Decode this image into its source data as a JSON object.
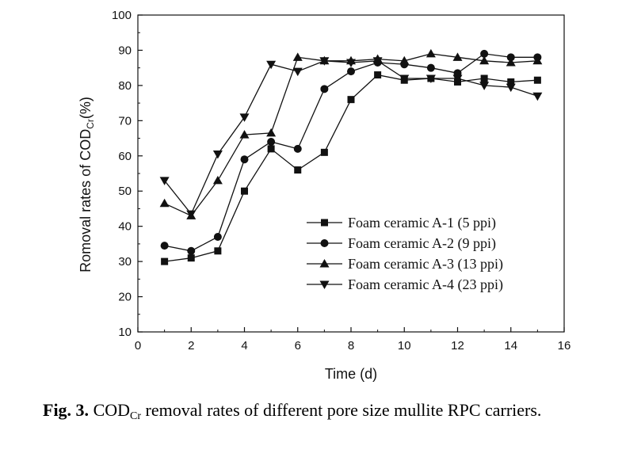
{
  "chart_data": {
    "type": "line",
    "xlabel": "Time (d)",
    "ylabel_main": "Romoval rates of COD",
    "ylabel_sub": "Cr",
    "ylabel_suffix": "(%)",
    "xlim": [
      0,
      16
    ],
    "ylim": [
      10,
      100
    ],
    "xticks": [
      "0",
      "2",
      "4",
      "6",
      "8",
      "10",
      "12",
      "14",
      "16"
    ],
    "yticks": [
      "10",
      "20",
      "30",
      "40",
      "50",
      "60",
      "70",
      "80",
      "90",
      "100"
    ],
    "grid": false,
    "legend_position": "bottom-right",
    "x": [
      1,
      2,
      3,
      4,
      5,
      6,
      7,
      8,
      9,
      10,
      11,
      12,
      13,
      14,
      15
    ],
    "series": [
      {
        "name": "Foam ceramic A-1 (5 ppi)",
        "marker": "square",
        "values": [
          30,
          31,
          33,
          50,
          62,
          56,
          61,
          76,
          83,
          81.5,
          82,
          81,
          82,
          81,
          81.5
        ]
      },
      {
        "name": "Foam ceramic A-2 (9 ppi)",
        "marker": "circle",
        "values": [
          34.5,
          33,
          37,
          59,
          64,
          62,
          79,
          84,
          86.5,
          86,
          85,
          83.5,
          89,
          88,
          88
        ]
      },
      {
        "name": "Foam ceramic A-3 (13 ppi)",
        "marker": "triangle-up",
        "values": [
          46.5,
          43,
          53,
          66,
          66.5,
          88,
          87,
          87,
          87.5,
          87,
          89,
          88,
          87,
          86.5,
          87
        ]
      },
      {
        "name": "Foam ceramic A-4 (23 ppi)",
        "marker": "triangle-down",
        "values": [
          53,
          43.5,
          60.5,
          71,
          86,
          84,
          87,
          86.5,
          87,
          82,
          82,
          82,
          80,
          79.5,
          77
        ]
      }
    ]
  },
  "caption": {
    "label": "Fig. 3.",
    "text_before": " COD",
    "sub": "Cr",
    "text_after": " removal rates of different pore size mullite RPC carriers."
  }
}
